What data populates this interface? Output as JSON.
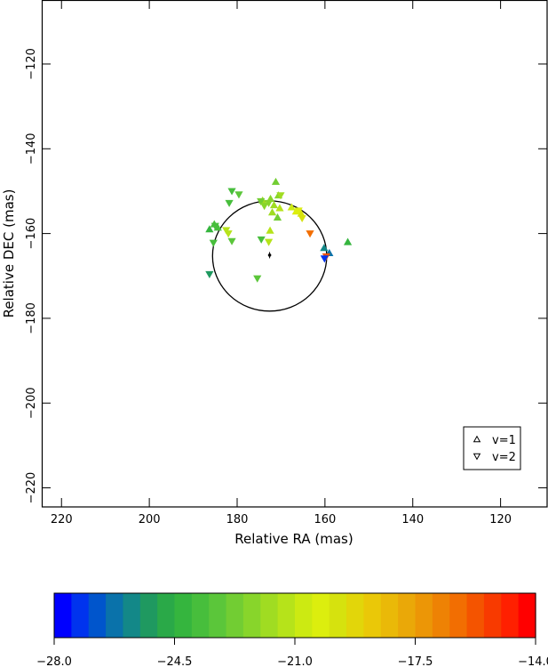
{
  "chart_data": {
    "type": "scatter",
    "xlabel": "Relative RA (mas)",
    "ylabel": "Relative DEC (mas)",
    "xlim": [
      224.5,
      109.2
    ],
    "ylim": [
      -224.5,
      -104.9
    ],
    "x_ticks": [
      220,
      200,
      180,
      160,
      140,
      120
    ],
    "y_ticks": [
      -120,
      -140,
      -160,
      -180,
      -200,
      -220
    ],
    "grid": false,
    "legend": {
      "position": "bottom-right",
      "entries": [
        {
          "symbol": "triangle-up",
          "label": "v=1"
        },
        {
          "symbol": "triangle-down",
          "label": "v=2"
        }
      ]
    },
    "circle": {
      "center_x": 172.6,
      "center_y": -165.3,
      "radius": 13.0
    },
    "center_marker": {
      "x": 172.6,
      "y": -165.1
    },
    "colorbar": {
      "min": -28.0,
      "max": -14.0,
      "ticks": [
        -28.0,
        -24.5,
        -21.0,
        -17.5,
        -14.0
      ],
      "tick_labels": [
        "−28.0",
        "−24.5",
        "−21.0",
        "−17.5",
        "−14.0"
      ],
      "colors": [
        "#0000ff",
        "#0033ee",
        "#0055cc",
        "#0a72aa",
        "#138888",
        "#1f9960",
        "#2aa948",
        "#35b53e",
        "#47be3c",
        "#5bc63a",
        "#72cd33",
        "#88d52b",
        "#a0dc22",
        "#b6e31a",
        "#ccea12",
        "#dcee0e",
        "#d6e20e",
        "#e2d60a",
        "#eac808",
        "#eab908",
        "#eaa808",
        "#ec9606",
        "#ee8204",
        "#f26e02",
        "#f45400",
        "#f83a00",
        "#ff2000",
        "#ff0000"
      ]
    },
    "series": [
      {
        "name": "v=1",
        "marker": "triangle-up",
        "points": [
          {
            "x": 171.2,
            "y": -147.8,
            "v": -22.8
          },
          {
            "x": 170.6,
            "y": -151.0,
            "v": -22.5
          },
          {
            "x": 172.4,
            "y": -151.8,
            "v": -22.2
          },
          {
            "x": 174.2,
            "y": -152.2,
            "v": -21.8
          },
          {
            "x": 171.6,
            "y": -153.3,
            "v": -21.6
          },
          {
            "x": 170.3,
            "y": -154.0,
            "v": -21.5
          },
          {
            "x": 172.0,
            "y": -155.0,
            "v": -22.0
          },
          {
            "x": 170.8,
            "y": -156.2,
            "v": -22.6
          },
          {
            "x": 185.2,
            "y": -157.8,
            "v": -24.0
          },
          {
            "x": 184.4,
            "y": -158.6,
            "v": -23.8
          },
          {
            "x": 186.3,
            "y": -159.0,
            "v": -24.2
          },
          {
            "x": 172.5,
            "y": -159.3,
            "v": -21.2
          },
          {
            "x": 167.6,
            "y": -153.8,
            "v": -20.9
          },
          {
            "x": 166.6,
            "y": -154.8,
            "v": -20.4
          },
          {
            "x": 165.4,
            "y": -155.3,
            "v": -19.8
          },
          {
            "x": 160.2,
            "y": -163.4,
            "v": -25.6
          },
          {
            "x": 154.8,
            "y": -162.0,
            "v": -24.4
          },
          {
            "x": 159.0,
            "y": -164.6,
            "v": -26.5
          }
        ]
      },
      {
        "name": "v=2",
        "marker": "triangle-down",
        "points": [
          {
            "x": 181.2,
            "y": -150.0,
            "v": -23.8
          },
          {
            "x": 179.6,
            "y": -150.8,
            "v": -23.4
          },
          {
            "x": 174.6,
            "y": -152.4,
            "v": -22.6
          },
          {
            "x": 172.8,
            "y": -152.8,
            "v": -22.1
          },
          {
            "x": 170.1,
            "y": -151.0,
            "v": -21.7
          },
          {
            "x": 181.8,
            "y": -152.8,
            "v": -23.9
          },
          {
            "x": 173.8,
            "y": -153.5,
            "v": -22.4
          },
          {
            "x": 166.0,
            "y": -154.6,
            "v": -20.2
          },
          {
            "x": 165.2,
            "y": -156.4,
            "v": -19.6
          },
          {
            "x": 185.0,
            "y": -158.2,
            "v": -23.6
          },
          {
            "x": 182.5,
            "y": -159.2,
            "v": -21.4
          },
          {
            "x": 182.0,
            "y": -160.0,
            "v": -21.2
          },
          {
            "x": 181.2,
            "y": -161.8,
            "v": -23.1
          },
          {
            "x": 174.5,
            "y": -161.4,
            "v": -23.6
          },
          {
            "x": 172.8,
            "y": -162.0,
            "v": -21.3
          },
          {
            "x": 185.4,
            "y": -162.2,
            "v": -23.7
          },
          {
            "x": 163.4,
            "y": -160.0,
            "v": -16.2
          },
          {
            "x": 159.7,
            "y": -165.4,
            "v": -16.0
          },
          {
            "x": 160.1,
            "y": -165.9,
            "v": -27.2
          },
          {
            "x": 186.3,
            "y": -169.6,
            "v": -25.4
          },
          {
            "x": 175.4,
            "y": -170.6,
            "v": -23.3
          }
        ]
      }
    ]
  }
}
